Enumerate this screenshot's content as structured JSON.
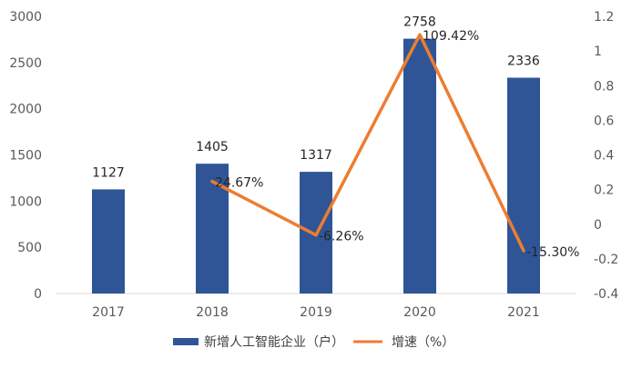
{
  "chart_data": {
    "type": "bar",
    "categories": [
      "2017",
      "2018",
      "2019",
      "2020",
      "2021"
    ],
    "series": [
      {
        "name": "新增人工智能企业（户）",
        "type": "bar",
        "axis": "left",
        "color": "#2F5597",
        "values": [
          1127,
          1405,
          1317,
          2758,
          2336
        ],
        "labels": [
          "1127",
          "1405",
          "1317",
          "2758",
          "2336"
        ]
      },
      {
        "name": "增速（%）",
        "type": "line",
        "axis": "right",
        "color": "#ED7D31",
        "values": [
          null,
          0.2467,
          -0.0626,
          1.0942,
          -0.153
        ],
        "labels": [
          "",
          "24.67%",
          "-6.26%",
          "109.42%",
          "-15.30%"
        ]
      }
    ],
    "y_left": {
      "min": 0,
      "max": 3000,
      "ticks": [
        "0",
        "500",
        "1000",
        "1500",
        "2000",
        "2500",
        "3000"
      ]
    },
    "y_right": {
      "min": -0.4,
      "max": 1.2,
      "ticks": [
        "-0.4",
        "-0.2",
        "0",
        "0.2",
        "0.4",
        "0.6",
        "0.8",
        "1",
        "1.2"
      ]
    },
    "grid": false,
    "legend": "bottom"
  }
}
